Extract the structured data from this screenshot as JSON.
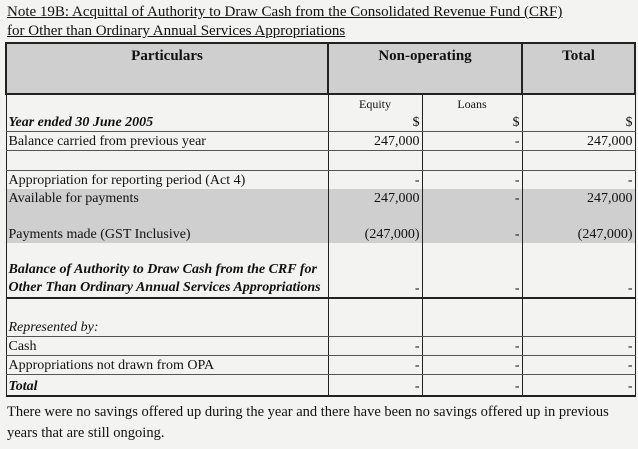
{
  "title": {
    "line1": "Note 19B:  Acquittal of Authority to Draw Cash from the Consolidated Revenue Fund (CRF)",
    "line2": "for Other than Ordinary Annual Services Appropriations"
  },
  "headers": {
    "particulars": "Particulars",
    "non_operating": "Non-operating",
    "total": "Total",
    "equity": "Equity",
    "loans": "Loans",
    "currency": "$"
  },
  "rows": [
    {
      "label": "Year ended 30 June 2005",
      "equity": "$",
      "loans": "$",
      "total": "$"
    },
    {
      "label": "Balance carried from previous year",
      "equity": "247,000",
      "loans": "-",
      "total": "247,000"
    },
    {
      "label": "",
      "equity": "",
      "loans": "",
      "total": ""
    },
    {
      "label": "Appropriation for reporting period (Act 4)",
      "equity": "-",
      "loans": "-",
      "total": "-"
    },
    {
      "label": "Available for payments",
      "equity": "247,000",
      "loans": "-",
      "total": "247,000"
    },
    {
      "label": "",
      "equity": "",
      "loans": "",
      "total": ""
    },
    {
      "label": "Payments made (GST Inclusive)",
      "equity": "(247,000)",
      "loans": "-",
      "total": "(247,000)"
    },
    {
      "label": "Balance of Authority to Draw Cash from the CRF for Other Than Ordinary Annual Services Appropriations",
      "equity": "-",
      "loans": "-",
      "total": "-"
    },
    {
      "label": "",
      "equity": "",
      "loans": "",
      "total": ""
    },
    {
      "label": "Represented by:",
      "equity": "",
      "loans": "",
      "total": ""
    },
    {
      "label": "Cash",
      "equity": "-",
      "loans": "-",
      "total": "-"
    },
    {
      "label": "Appropriations not drawn from OPA",
      "equity": "-",
      "loans": "-",
      "total": "-"
    },
    {
      "label": "Total",
      "equity": "-",
      "loans": "-",
      "total": "-"
    }
  ],
  "footer": "There were no savings offered up during the year and there have been no savings offered up in previous years that are still ongoing."
}
